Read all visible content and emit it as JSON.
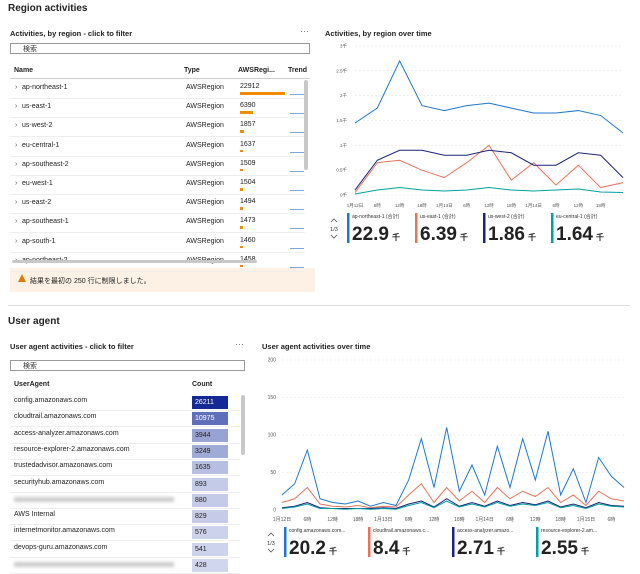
{
  "region_section": {
    "title": "Region activities"
  },
  "region_table": {
    "title": "Activities, by region - click to filter",
    "search_placeholder": "検索",
    "columns": [
      "Name",
      "Type",
      "AWSRegi...",
      "Trend"
    ],
    "rows": [
      {
        "name": "ap-northeast-1",
        "type": "AWSRegion",
        "value": 22912
      },
      {
        "name": "us-east-1",
        "type": "AWSRegion",
        "value": 6390
      },
      {
        "name": "us-west-2",
        "type": "AWSRegion",
        "value": 1857
      },
      {
        "name": "eu-central-1",
        "type": "AWSRegion",
        "value": 1637
      },
      {
        "name": "ap-southeast-2",
        "type": "AWSRegion",
        "value": 1509
      },
      {
        "name": "eu-west-1",
        "type": "AWSRegion",
        "value": 1504
      },
      {
        "name": "us-east-2",
        "type": "AWSRegion",
        "value": 1494
      },
      {
        "name": "ap-southeast-1",
        "type": "AWSRegion",
        "value": 1473
      },
      {
        "name": "ap-south-1",
        "type": "AWSRegion",
        "value": 1460
      },
      {
        "name": "ap-northeast-2",
        "type": "AWSRegion",
        "value": 1458
      }
    ],
    "notice": "結果を最初の 250 行に制限しました。"
  },
  "useragent_section": {
    "title": "User agent"
  },
  "useragent_table": {
    "title": "User agent activities - click to filter",
    "search_placeholder": "検索",
    "columns": [
      "UserAgent",
      "Count"
    ],
    "rows": [
      {
        "name": "config.amazonaws.com",
        "value": 26211
      },
      {
        "name": "cloudtrail.amazonaws.com",
        "value": 10975
      },
      {
        "name": "access-analyzer.amazonaws.com",
        "value": 3944
      },
      {
        "name": "resource-explorer-2.amazonaws.com",
        "value": 3249
      },
      {
        "name": "trustedadvisor.amazonaws.com",
        "value": 1635
      },
      {
        "name": "securityhub.amazonaws.com",
        "value": 893
      },
      {
        "name": null,
        "value": 880
      },
      {
        "name": "AWS Internal",
        "value": 829
      },
      {
        "name": "internetmonitor.amazonaws.com",
        "value": 576
      },
      {
        "name": "devops-guru.amazonaws.com",
        "value": 541
      },
      {
        "name": null,
        "value": 428
      }
    ]
  },
  "chart_data": [
    {
      "type": "line",
      "title": "Activities, by region over time",
      "page_indicator": "1/3",
      "categories": [
        "1月12日",
        "6時",
        "12時",
        "18時",
        "1月13日",
        "6時",
        "12時",
        "18時",
        "1月14日",
        "6時",
        "12時",
        "18時",
        null
      ],
      "ylim": [
        0,
        3000
      ],
      "yticks": [
        {
          "value": 0,
          "label": "0千"
        },
        {
          "value": 500,
          "label": "0.5千"
        },
        {
          "value": 1000,
          "label": "1千"
        },
        {
          "value": 1500,
          "label": "1.5千"
        },
        {
          "value": 2000,
          "label": "2千"
        },
        {
          "value": 2500,
          "label": "2.5千"
        },
        {
          "value": 3000,
          "label": "3千"
        }
      ],
      "grid": true,
      "series": [
        {
          "name": "ap-northeast-1 (合計)",
          "color": "#1f77d0",
          "total": 22.9,
          "total_unit": "千",
          "values": [
            1450,
            1750,
            2700,
            1800,
            1700,
            1800,
            1850,
            1750,
            1650,
            1650,
            1700,
            1600,
            1250
          ]
        },
        {
          "name": "us-east-1 (合計)",
          "color": "#e8735a",
          "total": 6.39,
          "total_unit": "千",
          "values": [
            50,
            650,
            700,
            500,
            350,
            650,
            1000,
            300,
            650,
            200,
            600,
            150,
            250
          ]
        },
        {
          "name": "us-west-2 (合計)",
          "color": "#1a237e",
          "total": 1.86,
          "total_unit": "千",
          "values": [
            100,
            700,
            900,
            900,
            800,
            800,
            900,
            850,
            600,
            600,
            850,
            800,
            350
          ]
        },
        {
          "name": "eu-central-1 (合計)",
          "color": "#00a0a0",
          "total": 1.64,
          "total_unit": "千",
          "values": [
            20,
            100,
            150,
            100,
            80,
            100,
            150,
            100,
            80,
            100,
            120,
            60,
            50
          ]
        }
      ]
    },
    {
      "type": "line",
      "title": "User agent activities over time",
      "page_indicator": "1/3",
      "categories": [
        "1月12日",
        null,
        "6時",
        null,
        "12時",
        null,
        "18時",
        null,
        "1月13日",
        null,
        "6時",
        null,
        "12時",
        null,
        "18時",
        null,
        "1月14日",
        null,
        "6時",
        null,
        "12時",
        null,
        "18時",
        null,
        "1月15日",
        null,
        "6時",
        null
      ],
      "ylim": [
        0,
        200
      ],
      "yticks": [
        0,
        50,
        100,
        150,
        200
      ],
      "grid": true,
      "series": [
        {
          "name": "config.amazonaws.com...",
          "color": "#1f77d0",
          "total": 20.2,
          "total_unit": "千",
          "values": [
            20,
            35,
            80,
            15,
            10,
            8,
            12,
            5,
            10,
            6,
            40,
            95,
            30,
            110,
            25,
            60,
            20,
            85,
            30,
            95,
            40,
            105,
            20,
            55,
            10,
            70,
            45,
            30
          ]
        },
        {
          "name": "cloudtrail.amazonaws.c...",
          "color": "#e8735a",
          "total": 8.4,
          "total_unit": "千",
          "values": [
            10,
            15,
            30,
            8,
            5,
            4,
            6,
            3,
            5,
            4,
            20,
            35,
            10,
            30,
            12,
            25,
            10,
            30,
            15,
            25,
            18,
            30,
            10,
            20,
            6,
            25,
            15,
            12
          ]
        },
        {
          "name": "access-analyzer.amazo...",
          "color": "#1a237e",
          "total": 2.71,
          "total_unit": "千",
          "values": [
            3,
            5,
            10,
            3,
            2,
            2,
            2,
            2,
            3,
            2,
            8,
            12,
            4,
            15,
            5,
            10,
            5,
            12,
            6,
            10,
            7,
            12,
            4,
            8,
            3,
            10,
            6,
            5
          ]
        },
        {
          "name": "resource-explorer-2.am...",
          "color": "#00a0a0",
          "total": 2.55,
          "total_unit": "千",
          "values": [
            2,
            4,
            8,
            2,
            2,
            1,
            2,
            1,
            2,
            1,
            6,
            10,
            3,
            12,
            4,
            8,
            4,
            10,
            5,
            8,
            6,
            10,
            3,
            6,
            2,
            8,
            5,
            4
          ]
        }
      ]
    }
  ]
}
